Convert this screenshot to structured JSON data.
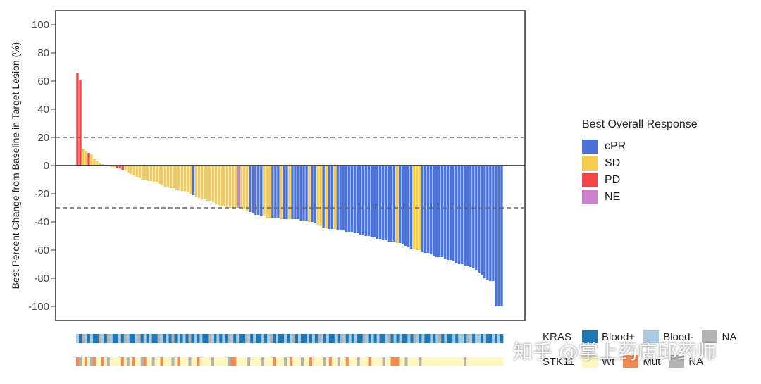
{
  "chart_data": {
    "type": "bar",
    "subtype": "waterfall",
    "ylabel": "Best Percent Change from Baseline in Target Lesion (%)",
    "xlabel": "",
    "ylim": [
      -110,
      110
    ],
    "yticks": [
      100,
      80,
      60,
      40,
      20,
      0,
      -20,
      -40,
      -60,
      -80,
      -100
    ],
    "reference_lines": [
      20,
      -30
    ],
    "legend": {
      "title": "Best Overall Response",
      "placement": "right",
      "items": [
        {
          "key": "cPR",
          "label": "cPR",
          "color": "#4C72D6"
        },
        {
          "key": "SD",
          "label": "SD",
          "color": "#F7CB4D"
        },
        {
          "key": "PD",
          "label": "PD",
          "color": "#F0464A"
        },
        {
          "key": "NE",
          "label": "NE",
          "color": "#CC80CC"
        }
      ]
    },
    "values": [
      66,
      61,
      12,
      10,
      9,
      8,
      5,
      3,
      2,
      1,
      0.5,
      0,
      -1,
      -1,
      -2,
      -2,
      -3,
      -3,
      -5,
      -6,
      -7,
      -8,
      -9,
      -10,
      -10,
      -11,
      -11,
      -12,
      -12,
      -13,
      -14,
      -15,
      -15,
      -16,
      -16,
      -17,
      -17,
      -18,
      -18,
      -19,
      -20,
      -21,
      -22,
      -23,
      -24,
      -24,
      -25,
      -25,
      -26,
      -27,
      -28,
      -29,
      -29,
      -29.5,
      -30,
      -30,
      -30,
      -30,
      -30,
      -31,
      -32,
      -33,
      -34,
      -35,
      -35,
      -36,
      -36,
      -37,
      -37,
      -37,
      -37,
      -37,
      -38,
      -38,
      -38,
      -38,
      -38,
      -38,
      -38,
      -39,
      -39,
      -39,
      -40,
      -40,
      -41,
      -42,
      -43,
      -44,
      -44,
      -45,
      -45,
      -45,
      -46,
      -46,
      -46,
      -47,
      -47,
      -47,
      -48,
      -48,
      -49,
      -49,
      -50,
      -50,
      -51,
      -51,
      -52,
      -52,
      -53,
      -53,
      -54,
      -54,
      -54,
      -55,
      -55,
      -56,
      -57,
      -58,
      -59,
      -59,
      -60,
      -60,
      -61,
      -62,
      -62,
      -63,
      -64,
      -65,
      -65,
      -65,
      -66,
      -67,
      -67,
      -68,
      -69,
      -70,
      -70,
      -71,
      -71,
      -72,
      -73,
      -74,
      -76,
      -78,
      -80,
      -81,
      -82,
      -82,
      -100,
      -100,
      -100
    ],
    "categories_sequence": [
      "PD",
      "PD",
      "SD",
      "SD",
      "PD",
      "SD",
      "SD",
      "SD",
      "SD",
      "SD",
      "SD",
      "SD",
      "SD",
      "SD",
      "PD",
      "PD",
      "PD",
      "SD",
      "SD",
      "SD",
      "SD",
      "SD",
      "SD",
      "SD",
      "SD",
      "SD",
      "SD",
      "SD",
      "SD",
      "SD",
      "SD",
      "SD",
      "SD",
      "SD",
      "SD",
      "SD",
      "SD",
      "SD",
      "SD",
      "SD",
      "SD",
      "cPR",
      "SD",
      "SD",
      "SD",
      "SD",
      "SD",
      "SD",
      "SD",
      "SD",
      "SD",
      "SD",
      "SD",
      "SD",
      "SD",
      "SD",
      "SD",
      "NE",
      "SD",
      "SD",
      "SD",
      "cPR",
      "cPR",
      "cPR",
      "cPR",
      "cPR",
      "SD",
      "SD",
      "SD",
      "cPR",
      "cPR",
      "cPR",
      "SD",
      "cPR",
      "cPR",
      "SD",
      "cPR",
      "cPR",
      "cPR",
      "cPR",
      "cPR",
      "cPR",
      "SD",
      "cPR",
      "cPR",
      "SD",
      "SD",
      "cPR",
      "SD",
      "cPR",
      "cPR",
      "SD",
      "cPR",
      "cPR",
      "cPR",
      "cPR",
      "cPR",
      "cPR",
      "cPR",
      "cPR",
      "cPR",
      "cPR",
      "cPR",
      "cPR",
      "cPR",
      "cPR",
      "cPR",
      "cPR",
      "cPR",
      "cPR",
      "cPR",
      "cPR",
      "cPR",
      "SD",
      "cPR",
      "cPR",
      "cPR",
      "cPR",
      "cPR",
      "SD",
      "SD",
      "SD",
      "cPR",
      "cPR",
      "cPR",
      "cPR",
      "cPR",
      "cPR",
      "cPR",
      "cPR",
      "cPR",
      "cPR",
      "cPR",
      "cPR",
      "cPR",
      "cPR",
      "cPR",
      "cPR",
      "cPR",
      "cPR",
      "cPR",
      "cPR",
      "cPR",
      "cPR",
      "cPR",
      "cPR",
      "cPR",
      "cPR",
      "cPR",
      "cPR",
      "cPR"
    ],
    "tracks": [
      {
        "name": "KRAS",
        "legend": [
          {
            "key": "Blood+",
            "label": "Blood+",
            "color": "#1F77B4"
          },
          {
            "key": "Blood-",
            "label": "Blood-",
            "color": "#A9CCE3"
          },
          {
            "key": "NA",
            "label": "NA",
            "color": "#B3B3B3"
          }
        ],
        "sequence": [
          "Blood-",
          "Blood+",
          "NA",
          "Blood-",
          "Blood+",
          "Blood-",
          "Blood+",
          "Blood+",
          "NA",
          "Blood-",
          "Blood+",
          "NA",
          "Blood-",
          "Blood+",
          "Blood+",
          "Blood-",
          "Blood+",
          "NA",
          "Blood-",
          "Blood+",
          "Blood+",
          "Blood-",
          "NA",
          "Blood+",
          "Blood-",
          "Blood+",
          "Blood-",
          "Blood+",
          "Blood+",
          "NA",
          "Blood-",
          "Blood+",
          "Blood-",
          "Blood+",
          "NA",
          "Blood+",
          "Blood-",
          "Blood+",
          "Blood-",
          "Blood+",
          "NA",
          "Blood+",
          "Blood-",
          "Blood+",
          "Blood-",
          "Blood+",
          "Blood+",
          "NA",
          "Blood-",
          "Blood+",
          "Blood-",
          "Blood+",
          "Blood-",
          "Blood+",
          "NA",
          "Blood-",
          "Blood+",
          "Blood-",
          "Blood+",
          "Blood+",
          "NA",
          "Blood-",
          "Blood+",
          "Blood-",
          "Blood+",
          "Blood+",
          "Blood-",
          "Blood+",
          "Blood-",
          "NA",
          "Blood+",
          "Blood-",
          "Blood+",
          "Blood+",
          "Blood-",
          "Blood+",
          "Blood-",
          "NA",
          "Blood+",
          "Blood-",
          "Blood+",
          "Blood+",
          "Blood-",
          "Blood+",
          "Blood-",
          "Blood+",
          "NA",
          "Blood-",
          "Blood+",
          "Blood-",
          "Blood+",
          "Blood+",
          "Blood-",
          "Blood+",
          "NA",
          "Blood-",
          "Blood+",
          "Blood-",
          "Blood+",
          "Blood-",
          "Blood+",
          "Blood+",
          "NA",
          "Blood-",
          "Blood+",
          "Blood-",
          "Blood+",
          "Blood-",
          "Blood+",
          "Blood+",
          "Blood-",
          "NA",
          "Blood+",
          "Blood-",
          "Blood+",
          "Blood-",
          "Blood+",
          "Blood+",
          "Blood-",
          "Blood+",
          "NA",
          "Blood-",
          "Blood+",
          "Blood-",
          "Blood+",
          "Blood+",
          "Blood-",
          "Blood+",
          "Blood-",
          "NA",
          "Blood+",
          "Blood-",
          "Blood+",
          "Blood+",
          "Blood-",
          "Blood+",
          "Blood-",
          "Blood-",
          "Blood+",
          "NA",
          "Blood-",
          "Blood+",
          "Blood-",
          "Blood-",
          "Blood+",
          "Blood-",
          "Blood+",
          "Blood+",
          "Blood-",
          "Blood+",
          "Blood-",
          "Blood+"
        ]
      },
      {
        "name": "STK11",
        "legend": [
          {
            "key": "Wt",
            "label": "Wt",
            "color": "#FFF7C2"
          },
          {
            "key": "Mut",
            "label": "Mut",
            "color": "#F28A52"
          },
          {
            "key": "NA",
            "label": "NA",
            "color": "#B3B3B3"
          }
        ],
        "sequence": [
          "Mut",
          "NA",
          "Wt",
          "Mut",
          "Wt",
          "NA",
          "Mut",
          "Wt",
          "Wt",
          "Mut",
          "Wt",
          "NA",
          "Wt",
          "Wt",
          "Wt",
          "Wt",
          "Mut",
          "Wt",
          "NA",
          "Wt",
          "Mut",
          "Wt",
          "Wt",
          "NA",
          "Mut",
          "Wt",
          "Wt",
          "NA",
          "Wt",
          "Wt",
          "Mut",
          "Wt",
          "Wt",
          "Wt",
          "NA",
          "Wt",
          "Mut",
          "Wt",
          "Wt",
          "Wt",
          "NA",
          "Wt",
          "Wt",
          "Mut",
          "Wt",
          "Wt",
          "Wt",
          "Wt",
          "NA",
          "Wt",
          "Wt",
          "Wt",
          "Wt",
          "Wt",
          "NA",
          "Mut",
          "Mut",
          "Wt",
          "Wt",
          "Wt",
          "Wt",
          "NA",
          "Wt",
          "Wt",
          "Wt",
          "Wt",
          "NA",
          "Wt",
          "Wt",
          "Wt",
          "Mut",
          "Wt",
          "Wt",
          "Wt",
          "NA",
          "Wt",
          "Mut",
          "Wt",
          "Wt",
          "Wt",
          "NA",
          "Wt",
          "Wt",
          "Mut",
          "Wt",
          "Wt",
          "Wt",
          "Wt",
          "NA",
          "Wt",
          "Mut",
          "Wt",
          "Wt",
          "NA",
          "Wt",
          "Wt",
          "Mut",
          "Wt",
          "Wt",
          "Wt",
          "NA",
          "Wt",
          "Wt",
          "Wt",
          "Mut",
          "Wt",
          "Wt",
          "Wt",
          "Wt",
          "NA",
          "Wt",
          "Wt",
          "Mut",
          "Mut",
          "Mut",
          "Wt",
          "Wt",
          "NA",
          "Wt",
          "Wt",
          "Wt",
          "Wt",
          "NA",
          "Wt",
          "Wt",
          "Wt",
          "Wt",
          "Wt",
          "Wt",
          "Wt",
          "Wt",
          "Wt",
          "Wt",
          "Wt",
          "Wt",
          "Wt",
          "Wt",
          "Wt",
          "NA",
          "Wt",
          "Wt",
          "Wt",
          "Wt",
          "Wt",
          "Wt",
          "Wt",
          "Wt",
          "Wt",
          "Wt",
          "Wt",
          "Wt",
          "Wt"
        ]
      }
    ]
  },
  "watermark": "知乎 @掌上药店邱药师"
}
